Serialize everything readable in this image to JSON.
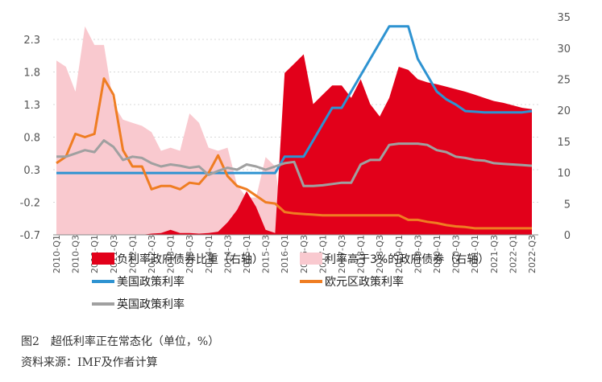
{
  "chart_data": {
    "type": "line",
    "caption": "图2　超低利率正在常态化（单位，%）",
    "source": "资料来源：IMF及作者计算",
    "left_axis": {
      "ticks": [
        -0.7,
        -0.2,
        0.3,
        0.8,
        1.3,
        1.8,
        2.3
      ],
      "ylim": [
        -0.7,
        2.6
      ]
    },
    "right_axis": {
      "ticks": [
        0,
        5,
        10,
        15,
        20,
        25,
        30,
        35
      ],
      "ylim": [
        0,
        35
      ]
    },
    "x": [
      "2010-Q1",
      "2010-Q2",
      "2010-Q3",
      "2010-Q4",
      "2011-Q1",
      "2011-Q2",
      "2011-Q3",
      "2011-Q4",
      "2012-Q1",
      "2012-Q2",
      "2012-Q3",
      "2012-Q4",
      "2013-Q1",
      "2013-Q2",
      "2013-Q3",
      "2013-Q4",
      "2014-Q1",
      "2014-Q2",
      "2014-Q3",
      "2014-Q4",
      "2015-Q1",
      "2015-Q2",
      "2015-Q3",
      "2015-Q4",
      "2016-Q1",
      "2016-Q2",
      "2016-Q3",
      "2016-Q4",
      "2017-Q1",
      "2017-Q2",
      "2017-Q3",
      "2017-Q4",
      "2018-Q1",
      "2018-Q2",
      "2018-Q3",
      "2018-Q4",
      "2019-Q1",
      "2019-Q2",
      "2019-Q3",
      "2019-Q4",
      "2020-Q1",
      "2020-Q2",
      "2020-Q3",
      "2020-Q4",
      "2021-Q1",
      "2021-Q2",
      "2021-Q3",
      "2021-Q4",
      "2022-Q1",
      "2022-Q2",
      "2022-Q3"
    ],
    "x_tick_labels": [
      "2010-Q1",
      "2010-Q3",
      "2011-Q1",
      "2011-Q3",
      "2012-Q1",
      "2012-Q3",
      "2013-Q1",
      "2013-Q3",
      "2014-Q1",
      "2014-Q3",
      "2015-Q1",
      "2015-Q3",
      "2016-Q1",
      "2016-Q3",
      "2017-Q1",
      "2017-Q3",
      "2018-Q1",
      "2018-Q3",
      "2019-Q1",
      "2019-Q3",
      "2020-Q1",
      "2020-Q3",
      "2021-Q1",
      "2021-Q3",
      "2022-Q1",
      "2022-Q3"
    ],
    "series": [
      {
        "name": "负利率政府债券比重（右轴）",
        "type": "area",
        "axis": "right",
        "color": "#e2001a",
        "values": [
          0,
          0,
          0,
          0,
          0,
          0,
          0,
          0,
          0,
          0,
          0.2,
          0.3,
          0.8,
          0.3,
          0.3,
          0.2,
          0.3,
          0.5,
          2,
          4,
          7,
          4.5,
          0.8,
          0.3,
          26,
          27.5,
          29,
          21,
          22.5,
          24,
          24,
          22,
          25,
          21,
          19,
          22,
          27,
          26.5,
          25,
          24.5,
          24.2,
          23.8,
          23.4,
          23,
          22.5,
          22,
          21.5,
          21.2,
          20.8,
          20.4,
          20.2
        ]
      },
      {
        "name": "利率高于3%的政府债券（右轴）",
        "type": "area",
        "axis": "right",
        "color": "#f9c9cf",
        "values": [
          28,
          27,
          23,
          33.5,
          30.5,
          30.5,
          21,
          18.5,
          18,
          17.5,
          16.5,
          13.5,
          14,
          13.5,
          19.5,
          18,
          14,
          13.5,
          14,
          8,
          6,
          6,
          12.5,
          11,
          0,
          0,
          0,
          0,
          0,
          0,
          0,
          0,
          0,
          0,
          0,
          0,
          0,
          0,
          0,
          0,
          0,
          0,
          0,
          0,
          0,
          0,
          0,
          0,
          0,
          0,
          0
        ]
      },
      {
        "name": "美国政策利率",
        "type": "line",
        "axis": "left",
        "color": "#2e93d1",
        "values": [
          0.25,
          0.25,
          0.25,
          0.25,
          0.25,
          0.25,
          0.25,
          0.25,
          0.25,
          0.25,
          0.25,
          0.25,
          0.25,
          0.25,
          0.25,
          0.25,
          0.25,
          0.25,
          0.25,
          0.25,
          0.25,
          0.25,
          0.25,
          0.25,
          0.5,
          0.5,
          0.5,
          0.75,
          1.0,
          1.25,
          1.25,
          1.5,
          1.75,
          2.0,
          2.25,
          2.5,
          2.5,
          2.5,
          2.0,
          1.75,
          1.5,
          1.38,
          1.3,
          1.2,
          1.19,
          1.18,
          1.18,
          1.18,
          1.18,
          1.18,
          1.2
        ]
      },
      {
        "name": "欧元区政策利率",
        "type": "line",
        "axis": "left",
        "color": "#ef7d22",
        "values": [
          0.4,
          0.5,
          0.85,
          0.8,
          0.85,
          1.7,
          1.45,
          0.6,
          0.35,
          0.35,
          0.0,
          0.05,
          0.05,
          0.0,
          0.1,
          0.08,
          0.25,
          0.52,
          0.2,
          0.05,
          0.0,
          -0.1,
          -0.2,
          -0.22,
          -0.35,
          -0.37,
          -0.38,
          -0.39,
          -0.4,
          -0.4,
          -0.4,
          -0.4,
          -0.4,
          -0.4,
          -0.4,
          -0.4,
          -0.4,
          -0.47,
          -0.47,
          -0.5,
          -0.52,
          -0.55,
          -0.57,
          -0.58,
          -0.6,
          -0.6,
          -0.6,
          -0.6,
          -0.6,
          -0.6,
          -0.6
        ]
      },
      {
        "name": "英国政策利率",
        "type": "line",
        "axis": "left",
        "color": "#a0a0a0",
        "values": [
          0.5,
          0.5,
          0.55,
          0.6,
          0.57,
          0.75,
          0.65,
          0.45,
          0.5,
          0.48,
          0.4,
          0.35,
          0.38,
          0.36,
          0.33,
          0.35,
          0.22,
          0.28,
          0.33,
          0.3,
          0.38,
          0.35,
          0.3,
          0.35,
          0.4,
          0.42,
          0.05,
          0.05,
          0.06,
          0.08,
          0.1,
          0.1,
          0.38,
          0.45,
          0.45,
          0.68,
          0.7,
          0.7,
          0.7,
          0.68,
          0.6,
          0.57,
          0.5,
          0.48,
          0.45,
          0.44,
          0.4,
          0.39,
          0.38,
          0.37,
          0.36
        ]
      }
    ],
    "legend": {
      "placement": "bottom"
    }
  }
}
